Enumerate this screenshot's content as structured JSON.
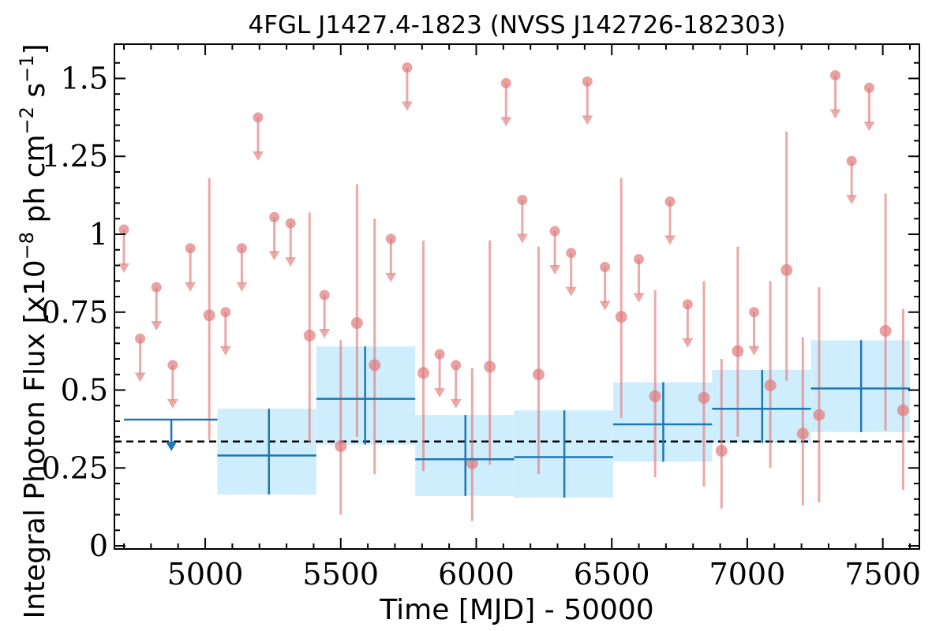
{
  "chart_data": {
    "type": "scatter",
    "title": "4FGL J1427.4-1823 (NVSS J142726-182303)",
    "xlabel": "Time [MJD] - 50000",
    "ylabel": "Integral Photon Flux [x10",
    "ylabel_exp1": "−8",
    "ylabel_mid": " ph cm",
    "ylabel_exp2": "−2",
    "ylabel_mid2": " s",
    "ylabel_exp3": "−1",
    "ylabel_end": "]",
    "xlim": [
      4665,
      7635
    ],
    "ylim": [
      -0.01,
      1.61
    ],
    "xticks": [
      5000,
      5500,
      6000,
      6500,
      7000,
      7500
    ],
    "xtick_labels": [
      "5000",
      "5500",
      "6000",
      "6500",
      "7000",
      "7500"
    ],
    "yticks": [
      0,
      0.25,
      0.5,
      0.75,
      1,
      1.25,
      1.5
    ],
    "ytick_labels": [
      "0",
      "0.25",
      "0.5",
      "0.75",
      "1",
      "1.25",
      "1.5"
    ],
    "reference_line": 0.335,
    "colors": {
      "short_bins": "#e07b7b",
      "long_bins": "#1f77b4",
      "long_bins_fill": "#cfeefd",
      "reference": "#000000"
    },
    "short_bins_detections": [
      {
        "x": 5015,
        "y": 0.74,
        "lo": 0.34,
        "hi": 1.18
      },
      {
        "x": 5385,
        "y": 0.675,
        "lo": 0.33,
        "hi": 1.07
      },
      {
        "x": 5500,
        "y": 0.32,
        "lo": 0.1,
        "hi": 0.66
      },
      {
        "x": 5560,
        "y": 0.715,
        "lo": 0.35,
        "hi": 1.16
      },
      {
        "x": 5625,
        "y": 0.58,
        "lo": 0.23,
        "hi": 1.05
      },
      {
        "x": 5805,
        "y": 0.555,
        "lo": 0.24,
        "hi": 0.98
      },
      {
        "x": 5985,
        "y": 0.265,
        "lo": 0.08,
        "hi": 0.57
      },
      {
        "x": 6050,
        "y": 0.575,
        "lo": 0.26,
        "hi": 0.98
      },
      {
        "x": 6230,
        "y": 0.55,
        "lo": 0.23,
        "hi": 0.96
      },
      {
        "x": 6535,
        "y": 0.735,
        "lo": 0.41,
        "hi": 1.18
      },
      {
        "x": 6660,
        "y": 0.48,
        "lo": 0.22,
        "hi": 0.82
      },
      {
        "x": 6840,
        "y": 0.475,
        "lo": 0.19,
        "hi": 0.85
      },
      {
        "x": 6905,
        "y": 0.305,
        "lo": 0.12,
        "hi": 0.6
      },
      {
        "x": 6965,
        "y": 0.625,
        "lo": 0.35,
        "hi": 0.96
      },
      {
        "x": 7085,
        "y": 0.515,
        "lo": 0.25,
        "hi": 0.85
      },
      {
        "x": 7145,
        "y": 0.885,
        "lo": 0.53,
        "hi": 1.33
      },
      {
        "x": 7205,
        "y": 0.36,
        "lo": 0.13,
        "hi": 0.67
      },
      {
        "x": 7265,
        "y": 0.42,
        "lo": 0.14,
        "hi": 0.83
      },
      {
        "x": 7510,
        "y": 0.69,
        "lo": 0.37,
        "hi": 1.13
      },
      {
        "x": 7575,
        "y": 0.435,
        "lo": 0.18,
        "hi": 0.76
      }
    ],
    "short_bins_upper_limits": [
      {
        "x": 4700,
        "y": 1.015
      },
      {
        "x": 4760,
        "y": 0.665
      },
      {
        "x": 4820,
        "y": 0.83
      },
      {
        "x": 4880,
        "y": 0.58
      },
      {
        "x": 4945,
        "y": 0.955
      },
      {
        "x": 5075,
        "y": 0.75
      },
      {
        "x": 5135,
        "y": 0.955
      },
      {
        "x": 5195,
        "y": 1.375
      },
      {
        "x": 5255,
        "y": 1.055
      },
      {
        "x": 5315,
        "y": 1.035
      },
      {
        "x": 5440,
        "y": 0.805
      },
      {
        "x": 5685,
        "y": 0.985
      },
      {
        "x": 5745,
        "y": 1.535
      },
      {
        "x": 5865,
        "y": 0.615
      },
      {
        "x": 5925,
        "y": 0.58
      },
      {
        "x": 6110,
        "y": 1.485
      },
      {
        "x": 6170,
        "y": 1.11
      },
      {
        "x": 6290,
        "y": 1.01
      },
      {
        "x": 6350,
        "y": 0.94
      },
      {
        "x": 6410,
        "y": 1.49
      },
      {
        "x": 6475,
        "y": 0.895
      },
      {
        "x": 6600,
        "y": 0.92
      },
      {
        "x": 6715,
        "y": 1.105
      },
      {
        "x": 6780,
        "y": 0.775
      },
      {
        "x": 7025,
        "y": 0.75
      },
      {
        "x": 7325,
        "y": 1.51
      },
      {
        "x": 7385,
        "y": 1.235
      },
      {
        "x": 7450,
        "y": 1.47
      }
    ],
    "long_bins": [
      {
        "x0": 4700,
        "x1": 5045,
        "xc": 4875,
        "upper_limit": true,
        "y": 0.405
      },
      {
        "x0": 5045,
        "x1": 5410,
        "xc": 5235,
        "y": 0.29,
        "lo": 0.165,
        "hi": 0.44
      },
      {
        "x0": 5410,
        "x1": 5775,
        "xc": 5590,
        "y": 0.472,
        "lo": 0.325,
        "hi": 0.64
      },
      {
        "x0": 5775,
        "x1": 6140,
        "xc": 5960,
        "y": 0.278,
        "lo": 0.16,
        "hi": 0.42
      },
      {
        "x0": 6140,
        "x1": 6505,
        "xc": 6325,
        "y": 0.285,
        "lo": 0.155,
        "hi": 0.435
      },
      {
        "x0": 6505,
        "x1": 6870,
        "xc": 6690,
        "y": 0.39,
        "lo": 0.27,
        "hi": 0.525
      },
      {
        "x0": 6870,
        "x1": 7235,
        "xc": 7055,
        "y": 0.44,
        "lo": 0.33,
        "hi": 0.565
      },
      {
        "x0": 7235,
        "x1": 7600,
        "xc": 7420,
        "y": 0.505,
        "lo": 0.365,
        "hi": 0.66
      }
    ]
  }
}
